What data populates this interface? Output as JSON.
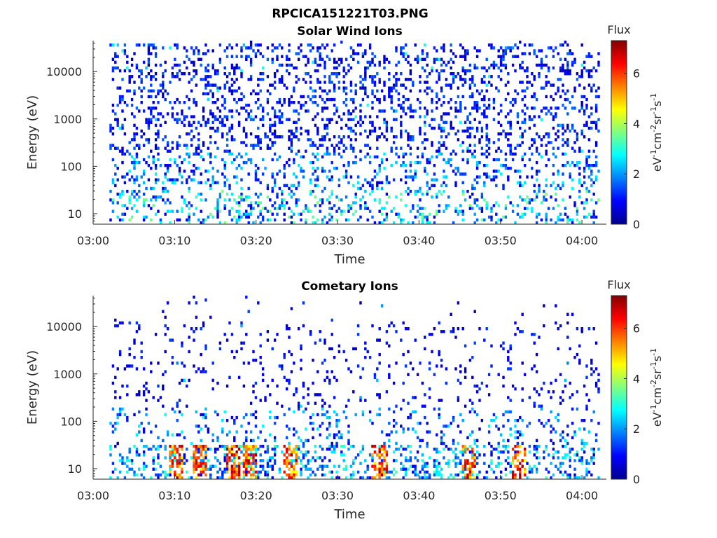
{
  "figure": {
    "title": "RPCICA151221T03.PNG"
  },
  "chart_data": [
    {
      "type": "heatmap",
      "title": "Solar Wind Ions",
      "xlabel": "Time",
      "ylabel": "Energy (eV)",
      "x_ticks": [
        "03:00",
        "03:10",
        "03:20",
        "03:30",
        "03:40",
        "03:50",
        "04:00"
      ],
      "xlim": [
        "03:00",
        "04:03"
      ],
      "y_scale": "log",
      "y_ticks": [
        "10",
        "100",
        "1000",
        "10000"
      ],
      "ylim": [
        6,
        45000
      ],
      "colorbar": {
        "title": "Flux",
        "label": "eV-1cm-2sr-1s-1",
        "ticks": [
          "0",
          "2",
          "4",
          "6"
        ],
        "range": [
          0,
          7.3
        ],
        "colormap": "jet"
      },
      "data_start": "03:02",
      "data_end": "04:02",
      "profile": {
        "high_energy_flux": "mostly 0.5-2 (blue)",
        "low_energy_flux_below_30eV": "up to about 3.5 (green)"
      }
    },
    {
      "type": "heatmap",
      "title": "Cometary Ions",
      "xlabel": "Time",
      "ylabel": "Energy (eV)",
      "x_ticks": [
        "03:00",
        "03:10",
        "03:20",
        "03:30",
        "03:40",
        "03:50",
        "04:00"
      ],
      "xlim": [
        "03:00",
        "04:03"
      ],
      "y_scale": "log",
      "y_ticks": [
        "10",
        "100",
        "1000",
        "10000"
      ],
      "ylim": [
        6,
        45000
      ],
      "colorbar": {
        "title": "Flux",
        "label": "eV-1cm-2sr-1s-1",
        "ticks": [
          "0",
          "2",
          "4",
          "6"
        ],
        "range": [
          0,
          7.3
        ],
        "colormap": "jet"
      },
      "data_start": "03:02",
      "data_end": "04:02",
      "profile": {
        "high_energy_flux": "sparse, mostly 0.5-1.5 (blue)",
        "low_energy_flux_below_30eV": "up to about 7 (red) in bursts near 03:10, 03:17, 03:19, 03:46, 03:52"
      }
    }
  ]
}
